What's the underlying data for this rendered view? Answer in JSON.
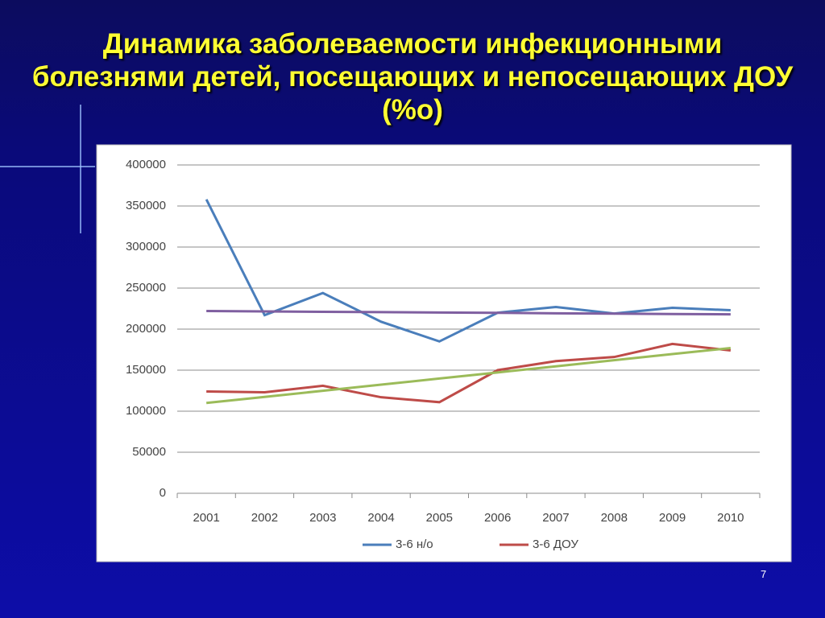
{
  "slide": {
    "page_number": "7"
  },
  "chart_data": {
    "type": "line",
    "title": "Динамика заболеваемости инфекционными болезнями детей, посещающих и непосещающих ДОУ (%о)",
    "categories": [
      "2001",
      "2002",
      "2003",
      "2004",
      "2005",
      "2006",
      "2007",
      "2008",
      "2009",
      "2010"
    ],
    "series": [
      {
        "name": "3-6 н/о",
        "color": "#4a7ebb",
        "values": [
          358000,
          217000,
          244000,
          209000,
          185000,
          220000,
          227000,
          219000,
          226000,
          223000
        ]
      },
      {
        "name": "3-6 ДОУ",
        "color": "#be4b48",
        "values": [
          124000,
          123000,
          131000,
          117000,
          111000,
          150000,
          161000,
          166000,
          182000,
          174000
        ]
      },
      {
        "color": "#7f5fa0",
        "values": [
          222000,
          221600,
          221100,
          220700,
          220200,
          219800,
          219300,
          218900,
          218400,
          218000
        ]
      },
      {
        "color": "#9bbb59",
        "values": [
          110000,
          117400,
          124900,
          132300,
          139800,
          147200,
          154700,
          162100,
          169600,
          177000
        ]
      }
    ],
    "ylim": [
      0,
      400000
    ],
    "yticks": [
      0,
      50000,
      100000,
      150000,
      200000,
      250000,
      300000,
      350000,
      400000
    ],
    "grid": true
  }
}
